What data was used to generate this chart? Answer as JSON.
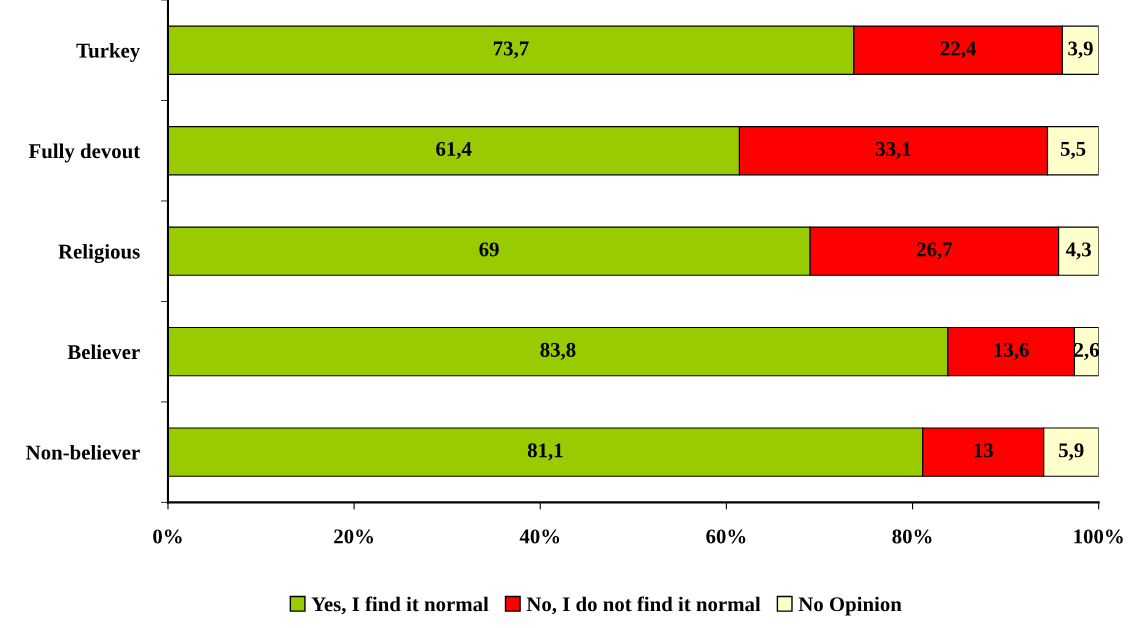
{
  "chart_data": {
    "type": "bar",
    "orientation": "horizontal",
    "stacked": true,
    "categories": [
      "Turkey",
      "Fully devout",
      "Religious",
      "Believer",
      "Non-believer"
    ],
    "series": [
      {
        "name": "Yes, I find it normal",
        "color": "#99cc00",
        "values": [
          73.7,
          61.4,
          69,
          83.8,
          81.1
        ],
        "value_labels": [
          "73,7",
          "61,4",
          "69",
          "83,8",
          "81,1"
        ]
      },
      {
        "name": "No, I do not find it normal",
        "color": "#ff0000",
        "values": [
          22.4,
          33.1,
          26.7,
          13.6,
          13
        ],
        "value_labels": [
          "22,4",
          "33,1",
          "26,7",
          "13,6",
          "13"
        ]
      },
      {
        "name": "No Opinion",
        "color": "#ffffcc",
        "values": [
          3.9,
          5.5,
          4.3,
          2.6,
          5.9
        ],
        "value_labels": [
          "3,9",
          "5,5",
          "4,3",
          "2,6",
          "5,9"
        ]
      }
    ],
    "xlim": [
      0,
      100
    ],
    "xticks": [
      {
        "value": 0,
        "label": "0%"
      },
      {
        "value": 20,
        "label": "20%"
      },
      {
        "value": 40,
        "label": "40%"
      },
      {
        "value": 60,
        "label": "60%"
      },
      {
        "value": 80,
        "label": "80%"
      },
      {
        "value": 100,
        "label": "100%"
      }
    ],
    "grid": false,
    "legend": "bottom"
  }
}
